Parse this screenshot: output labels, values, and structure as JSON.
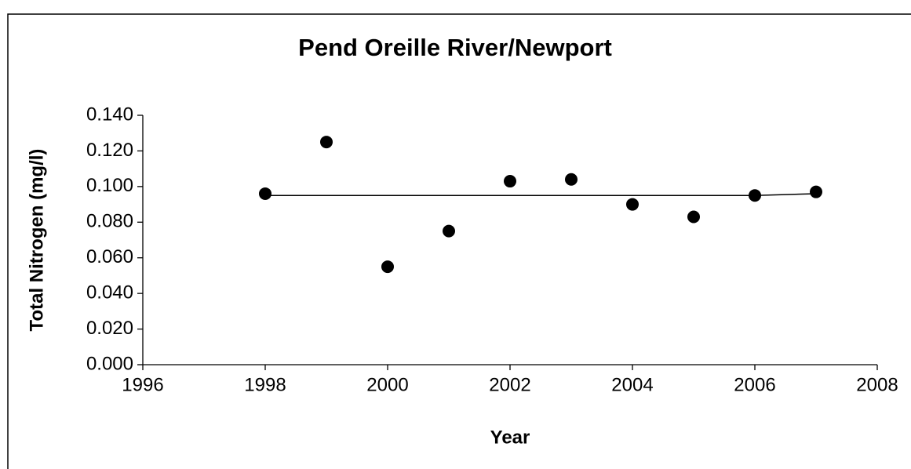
{
  "chart_data": {
    "type": "scatter",
    "title": "Pend Oreille River/Newport",
    "xlabel": "Year",
    "ylabel": "Total Nitrogen (mg/l)",
    "series": [
      {
        "color": "#000000",
        "mode": "markers",
        "x": [
          1998,
          1999,
          2000,
          2001,
          2002,
          2003,
          2004,
          2005,
          2006,
          2007
        ],
        "values": [
          0.096,
          0.125,
          0.055,
          0.075,
          0.103,
          0.104,
          0.09,
          0.083,
          0.095,
          0.097
        ]
      },
      {
        "color": "#000000",
        "mode": "line",
        "x": [
          1998,
          1999,
          2000,
          2001,
          2002,
          2003,
          2004,
          2005,
          2006,
          2007
        ],
        "values": [
          0.095,
          0.095,
          0.095,
          0.095,
          0.095,
          0.095,
          0.095,
          0.095,
          0.095,
          0.096
        ]
      }
    ],
    "xlim": [
      1996,
      2008
    ],
    "xticks": [
      1996,
      1998,
      2000,
      2002,
      2004,
      2006,
      2008
    ],
    "ylim": [
      0,
      0.14
    ],
    "yticks": [
      {
        "value": 0,
        "label": "0.000"
      },
      {
        "value": 0.02,
        "label": "0.020"
      },
      {
        "value": 0.04,
        "label": "0.040"
      },
      {
        "value": 0.06,
        "label": "0.060"
      },
      {
        "value": 0.08,
        "label": "0.080"
      },
      {
        "value": 0.1,
        "label": "0.100"
      },
      {
        "value": 0.12,
        "label": "0.120"
      },
      {
        "value": 0.14,
        "label": "0.140"
      }
    ],
    "grid": false
  }
}
